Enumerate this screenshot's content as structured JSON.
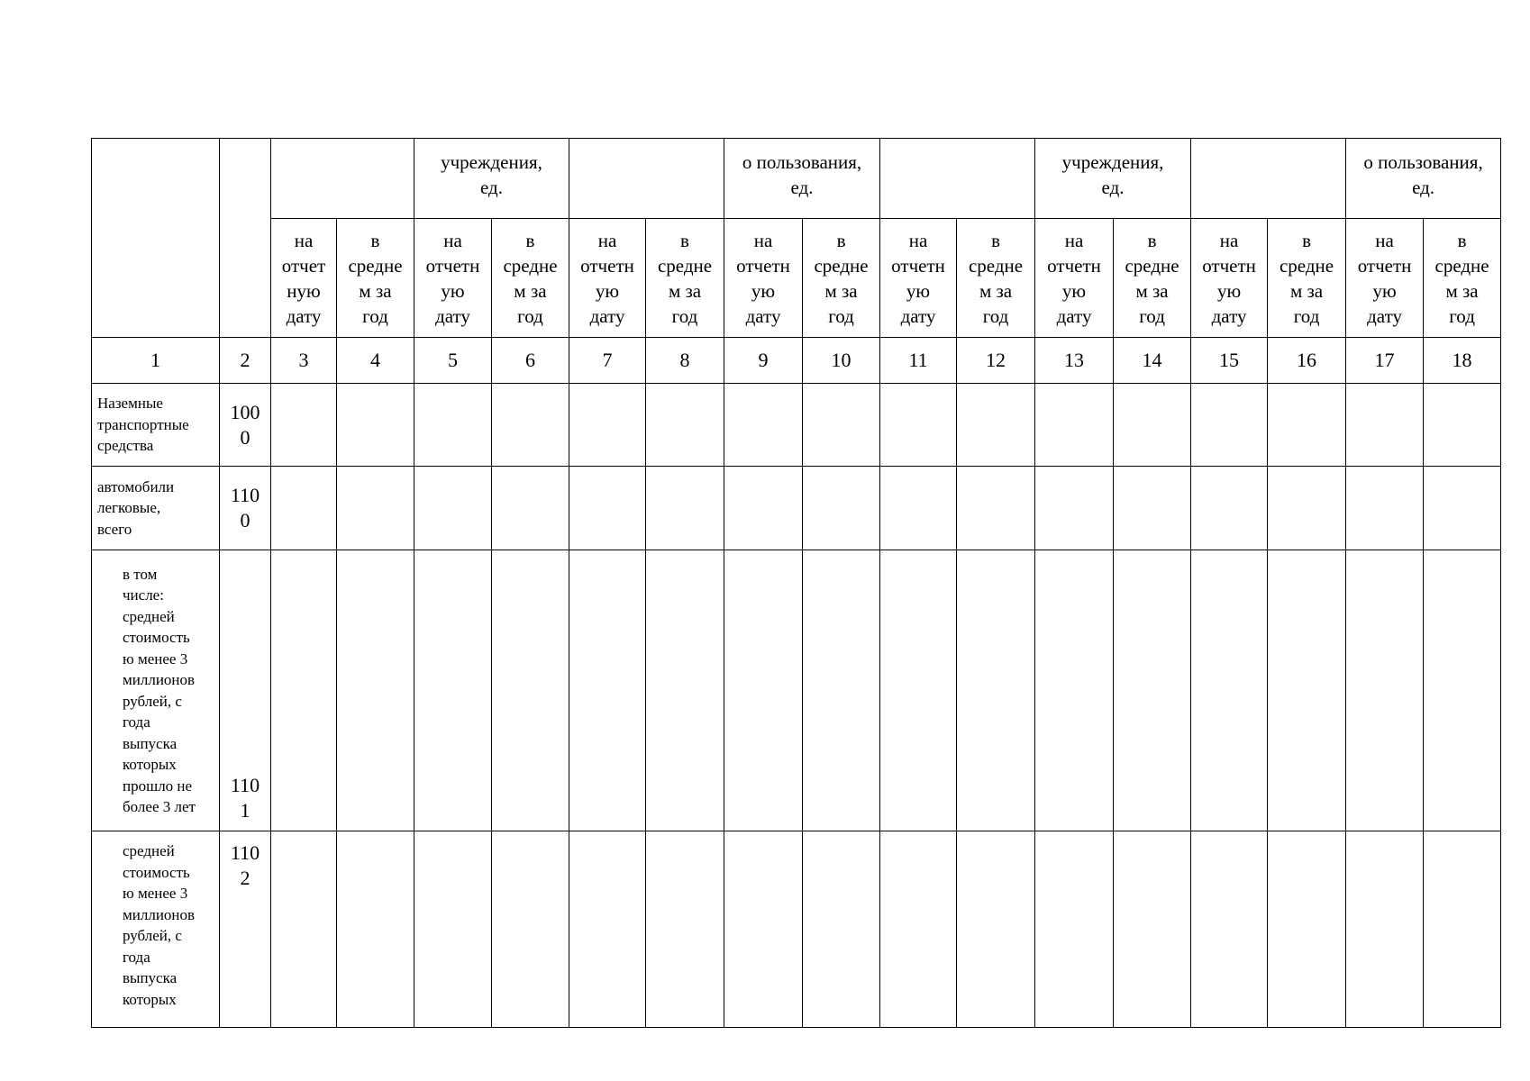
{
  "table": {
    "group_headers": [
      "",
      "учреждения,\nед.",
      "",
      "о пользования,\nед.",
      "",
      "учреждения,\nед.",
      "",
      "о пользования,\nед."
    ],
    "sub_headers": [
      "на\nотчет\nную\nдату",
      "в\nсредне\nм за\nгод",
      "на\nотчетн\nую\nдату",
      "в\nсредне\nм за\nгод",
      "на\nотчетн\nую\nдату",
      "в\nсредне\nм за\nгод",
      "на\nотчетн\nую\nдату",
      "в\nсредне\nм за\nгод",
      "на\nотчетн\nую\nдату",
      "в\nсредне\nм за\nгод",
      "на\nотчетн\nую\nдату",
      "в\nсредне\nм за\nгод",
      "на\nотчетн\nую\nдату",
      "в\nсредне\nм за\nгод",
      "на\nотчетн\nую\nдату",
      "в\nсредне\nм за\nгод"
    ],
    "column_numbers": [
      "1",
      "2",
      "3",
      "4",
      "5",
      "6",
      "7",
      "8",
      "9",
      "10",
      "11",
      "12",
      "13",
      "14",
      "15",
      "16",
      "17",
      "18"
    ],
    "rows": [
      {
        "label": "Наземные\nтранспортные\nсредства",
        "code": "100\n0"
      },
      {
        "label": "автомобили\nлегковые,\nвсего",
        "code": "110\n0"
      },
      {
        "label": "в том\nчисле:\nсредней\nстоимость\nю менее 3\nмиллионов\nрублей, с\nгода\nвыпуска\nкоторых\nпрошло не\nболее 3 лет",
        "code": "110\n1"
      },
      {
        "label": "средней\nстоимость\nю менее 3\nмиллионов\nрублей, с\nгода\nвыпуска\nкоторых",
        "code": "110\n2"
      }
    ]
  }
}
